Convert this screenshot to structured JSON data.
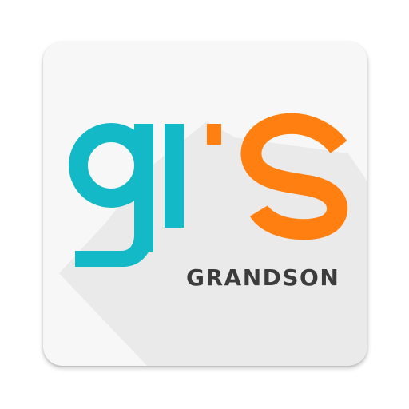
{
  "logo": {
    "wordmark": "GRANDSON",
    "letters": [
      "g",
      "r",
      "s"
    ],
    "colors": {
      "teal": "#14b9c8",
      "orange": "#ff8010",
      "text": "#3c3c3c",
      "background": "#f7f7f7"
    }
  }
}
